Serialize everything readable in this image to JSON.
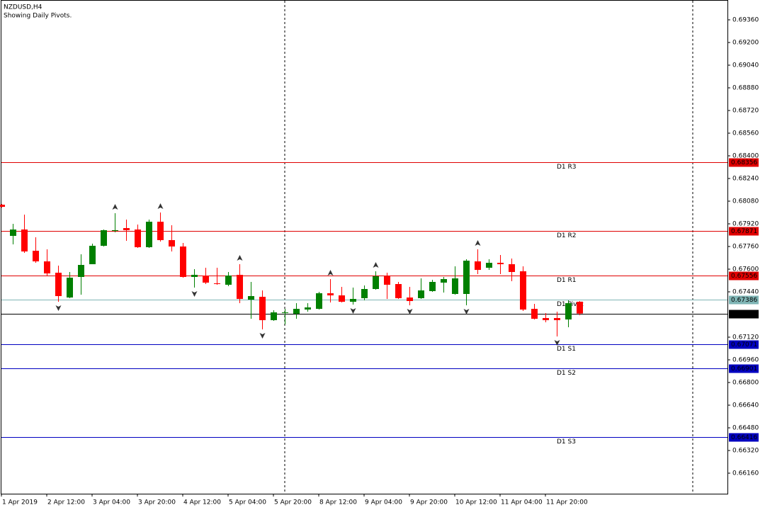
{
  "chart_data": {
    "type": "candlestick",
    "title": "NZDUSD,H4",
    "subtitle": "Showing Daily Pivots.",
    "categories": [
      "1 Apr 2019",
      null,
      null,
      null,
      "2 Apr 12:00",
      null,
      null,
      null,
      "3 Apr 04:00",
      null,
      null,
      null,
      "3 Apr 20:00",
      null,
      null,
      null,
      "4 Apr 12:00",
      null,
      null,
      null,
      "5 Apr 04:00",
      null,
      null,
      null,
      "5 Apr 20:00",
      null,
      null,
      null,
      "8 Apr 12:00",
      null,
      null,
      null,
      "9 Apr 04:00",
      null,
      null,
      null,
      "9 Apr 20:00",
      null,
      null,
      null,
      "10 Apr 12:00",
      null,
      null,
      null,
      "11 Apr 04:00",
      null,
      null,
      null,
      "11 Apr 20:00",
      null,
      null,
      null
    ],
    "open": [
      0.68055,
      0.67835,
      0.6788,
      0.6773,
      0.67655,
      0.67575,
      0.674,
      0.67545,
      0.67635,
      0.67765,
      0.6787,
      0.6789,
      0.6788,
      0.67755,
      0.67935,
      0.67805,
      0.6776,
      0.67545,
      0.67555,
      0.675,
      0.6749,
      0.6756,
      0.67385,
      0.67405,
      0.6724,
      0.6729,
      0.67285,
      0.67315,
      0.6732,
      0.6743,
      0.67415,
      0.6737,
      0.67395,
      0.6746,
      0.6755,
      0.67495,
      0.674,
      0.67395,
      0.67445,
      0.67505,
      0.67425,
      0.67425,
      0.67655,
      0.6761,
      0.67645,
      0.67635,
      0.67585,
      0.6732,
      0.67255,
      0.67255,
      0.67245,
      0.6737
    ],
    "high": [
      0.6806,
      0.6792,
      0.67985,
      0.67825,
      0.6774,
      0.67625,
      0.6758,
      0.67705,
      0.6778,
      0.6788,
      0.67995,
      0.6795,
      0.67915,
      0.6795,
      0.68,
      0.6791,
      0.67785,
      0.676,
      0.6761,
      0.6761,
      0.6758,
      0.67635,
      0.6751,
      0.6745,
      0.6731,
      0.6732,
      0.6736,
      0.6736,
      0.6744,
      0.6753,
      0.67475,
      0.6747,
      0.67485,
      0.67585,
      0.67575,
      0.6751,
      0.67475,
      0.67535,
      0.67525,
      0.67545,
      0.6762,
      0.6767,
      0.6774,
      0.6767,
      0.677,
      0.67675,
      0.6762,
      0.67355,
      0.6729,
      0.673,
      0.6738,
      0.67375
    ],
    "low": [
      0.68035,
      0.67775,
      0.67715,
      0.67645,
      0.67555,
      0.6737,
      0.67395,
      0.6742,
      0.67635,
      0.6776,
      0.6786,
      0.678,
      0.6775,
      0.6775,
      0.67795,
      0.67725,
      0.6754,
      0.6747,
      0.67495,
      0.6749,
      0.6748,
      0.6736,
      0.6725,
      0.67175,
      0.67235,
      0.6721,
      0.6725,
      0.673,
      0.67315,
      0.67365,
      0.67365,
      0.6735,
      0.6738,
      0.67455,
      0.6739,
      0.6739,
      0.67345,
      0.6739,
      0.6744,
      0.67435,
      0.6742,
      0.67345,
      0.67565,
      0.67595,
      0.67565,
      0.67515,
      0.67305,
      0.67245,
      0.67225,
      0.67125,
      0.6719,
      0.67275
    ],
    "close": [
      0.6804,
      0.6788,
      0.67725,
      0.67655,
      0.6757,
      0.6741,
      0.6754,
      0.6763,
      0.67765,
      0.67875,
      0.67875,
      0.67875,
      0.67755,
      0.67935,
      0.67805,
      0.6776,
      0.67545,
      0.6756,
      0.67505,
      0.67495,
      0.67555,
      0.6739,
      0.6741,
      0.6724,
      0.67295,
      0.67295,
      0.6732,
      0.6733,
      0.6743,
      0.67415,
      0.6737,
      0.6739,
      0.6746,
      0.6755,
      0.6749,
      0.67395,
      0.67375,
      0.6745,
      0.6751,
      0.6753,
      0.67535,
      0.6766,
      0.67595,
      0.67645,
      0.67635,
      0.6758,
      0.67315,
      0.6725,
      0.6724,
      0.6724,
      0.6736,
      0.67287
    ],
    "up_color": "#008000",
    "down_color": "#ff0000",
    "fractals": {
      "up": [
        10,
        14,
        21,
        29,
        33,
        42
      ],
      "down": [
        5,
        17,
        23,
        31,
        36,
        41,
        49
      ]
    },
    "levels": [
      {
        "name": "D1 R3",
        "value": 0.68356,
        "color": "#e00000"
      },
      {
        "name": "D1 R2",
        "value": 0.67871,
        "color": "#e00000"
      },
      {
        "name": "D1 R1",
        "value": 0.67556,
        "color": "#e00000"
      },
      {
        "name": "D1 Pivot",
        "value": 0.67386,
        "color": "#7fb5b5"
      },
      {
        "name": "D1 S1",
        "value": 0.67071,
        "color": "#0000c0"
      },
      {
        "name": "D1 S2",
        "value": 0.66901,
        "color": "#0000c0"
      },
      {
        "name": "D1 S3",
        "value": 0.66416,
        "color": "#0000c0"
      }
    ],
    "price_line": {
      "value": 0.67287,
      "color": "#000000"
    },
    "ylim": [
      0.66015,
      0.695
    ],
    "yticks": [
      {
        "value": 0.6936,
        "label": "0.69360"
      },
      {
        "value": 0.692,
        "label": "0.69200"
      },
      {
        "value": 0.6904,
        "label": "0.69040"
      },
      {
        "value": 0.6888,
        "label": "0.68880"
      },
      {
        "value": 0.6872,
        "label": "0.68720"
      },
      {
        "value": 0.6856,
        "label": "0.68560"
      },
      {
        "value": 0.684,
        "label": "0.68400"
      },
      {
        "value": 0.6824,
        "label": "0.68240"
      },
      {
        "value": 0.6808,
        "label": "0.68080"
      },
      {
        "value": 0.6792,
        "label": "0.67920"
      },
      {
        "value": 0.6776,
        "label": "0.67760"
      },
      {
        "value": 0.676,
        "label": "0.67600"
      },
      {
        "value": 0.6744,
        "label": "0.67440"
      },
      {
        "value": 0.6712,
        "label": "0.67120"
      },
      {
        "value": 0.6696,
        "label": "0.66960"
      },
      {
        "value": 0.668,
        "label": "0.66800"
      },
      {
        "value": 0.6664,
        "label": "0.66640"
      },
      {
        "value": 0.6648,
        "label": "0.66480"
      },
      {
        "value": 0.6632,
        "label": "0.66320"
      },
      {
        "value": 0.6616,
        "label": "0.66160"
      }
    ]
  }
}
